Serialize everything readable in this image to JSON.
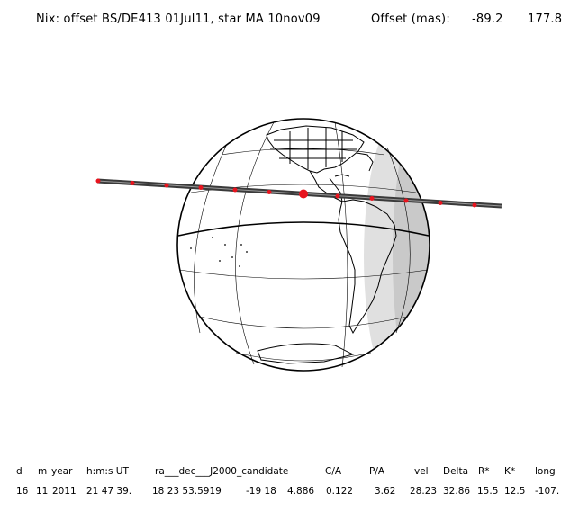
{
  "title": {
    "left": "Nix: offset BS/DE413 01Jul11, star MA 10nov09",
    "offset_label": "Offset (mas):",
    "offset_x": "-89.2",
    "offset_y": "177.8"
  },
  "table": {
    "headers": [
      "d",
      "m",
      "year",
      "h:m:s UT",
      "ra___dec___J2000_candidate",
      "C/A",
      "P/A",
      "vel",
      "Delta",
      "R*",
      "K*",
      "long"
    ],
    "values": [
      "16",
      "11",
      "2011",
      "21 47 39.",
      "18 23 53.5919",
      "-19 18",
      "4.886",
      "0.122",
      "3.62",
      "28.23",
      "32.86",
      "15.5",
      "12.5",
      "-107."
    ]
  },
  "colors": {
    "track": "#3a3a3a",
    "marker": "#e8141e",
    "night_shade": "#c9c9c9",
    "twilight_shade": "#e0e0e0"
  }
}
